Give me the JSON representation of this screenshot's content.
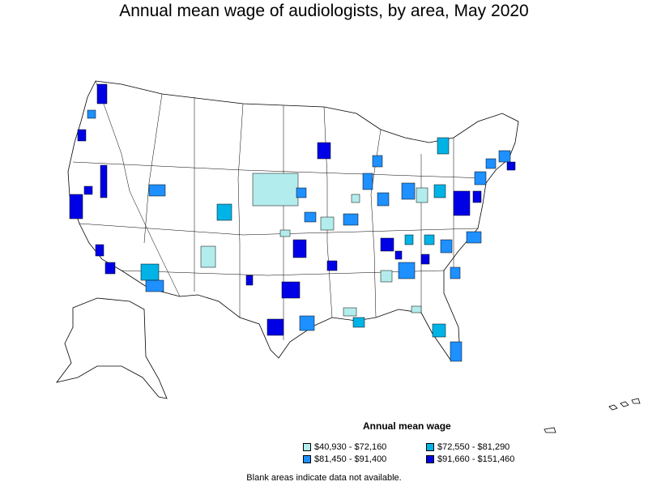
{
  "title": "Annual mean wage of audiologists, by area, May 2020",
  "legend": {
    "title": "Annual mean wage",
    "items": [
      {
        "label": "$40,930 - $72,160",
        "color": "#b3ecec"
      },
      {
        "label": "$72,550 - $81,290",
        "color": "#00b3e6"
      },
      {
        "label": "$81,450 - $91,400",
        "color": "#1e90ff"
      },
      {
        "label": "$91,660 - $151,460",
        "color": "#0000e6"
      }
    ]
  },
  "note": "Blank areas indicate data not available."
}
